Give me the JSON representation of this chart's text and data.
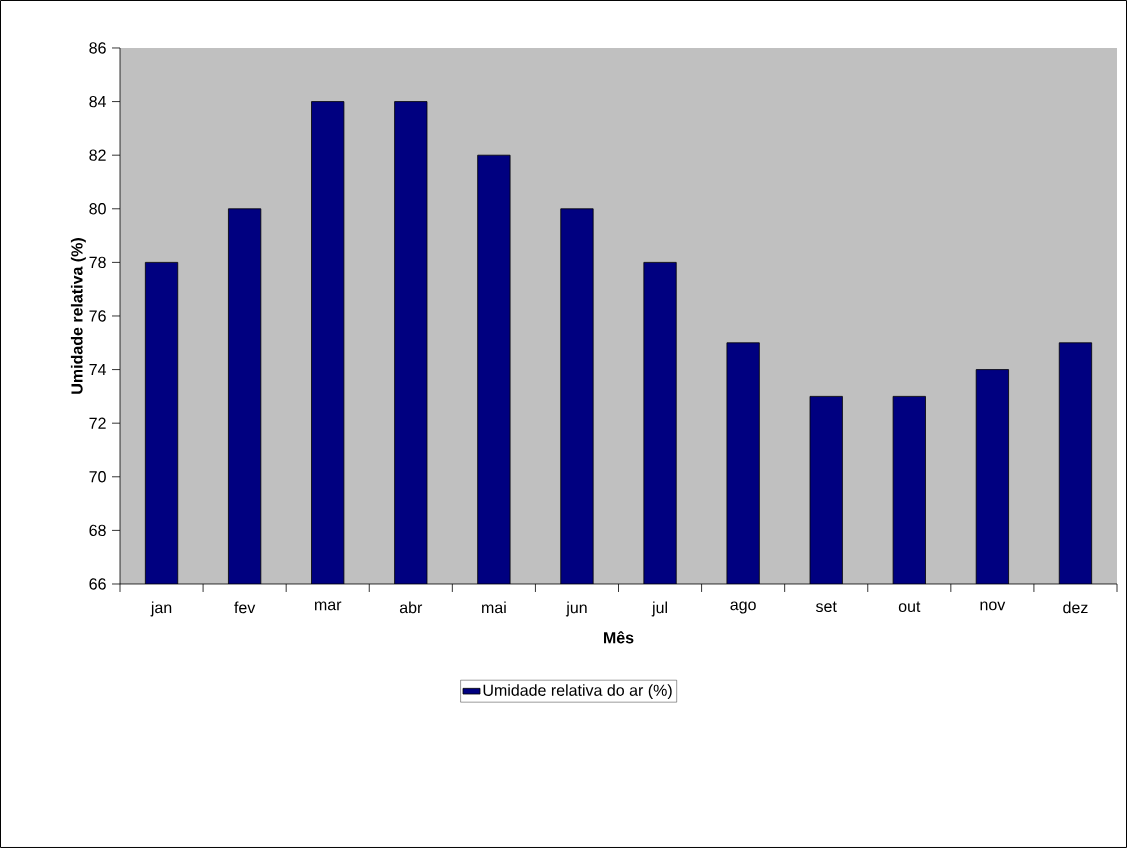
{
  "chart_data": {
    "type": "bar",
    "xlabel": "Mês",
    "ylabel": "Umidade relativa (%)",
    "categories": [
      "jan",
      "fev",
      "mar",
      "abr",
      "mai",
      "jun",
      "jul",
      "ago",
      "set",
      "out",
      "nov",
      "dez"
    ],
    "series": [
      {
        "name": "Umidade relativa do ar (%)",
        "color": "#000080",
        "values": [
          78,
          80,
          84,
          84,
          82,
          80,
          78,
          75,
          73,
          73,
          74,
          75
        ]
      }
    ],
    "ylim": [
      66,
      86
    ],
    "yticks": [
      66,
      68,
      70,
      72,
      74,
      76,
      78,
      80,
      82,
      84,
      86
    ],
    "grid": false,
    "legend": "bottom"
  }
}
